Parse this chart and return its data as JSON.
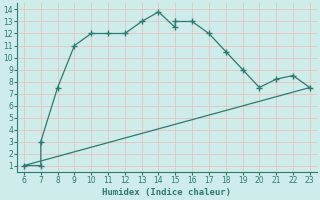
{
  "xlabel": "Humidex (Indice chaleur)",
  "curve_x": [
    6,
    7,
    7,
    8,
    9,
    10,
    11,
    12,
    13,
    14,
    15,
    15,
    16,
    17,
    18,
    19,
    20,
    21,
    22,
    23
  ],
  "curve_y": [
    1,
    1,
    3,
    7.5,
    11,
    12,
    12,
    12,
    13,
    13.8,
    12.5,
    13,
    13,
    12,
    10.5,
    9,
    7.5,
    8.2,
    8.5,
    7.5
  ],
  "line_x": [
    6,
    23
  ],
  "line_y": [
    1,
    7.5
  ],
  "color": "#2d7a6e",
  "bg_color": "#ceecea",
  "grid_h_color": "#e8c0c0",
  "grid_v_color": "#e8c0c0",
  "xlim": [
    5.6,
    23.4
  ],
  "ylim": [
    0.5,
    14.5
  ],
  "xticks": [
    6,
    7,
    8,
    9,
    10,
    11,
    12,
    13,
    14,
    15,
    16,
    17,
    18,
    19,
    20,
    21,
    22,
    23
  ],
  "yticks": [
    1,
    2,
    3,
    4,
    5,
    6,
    7,
    8,
    9,
    10,
    11,
    12,
    13,
    14
  ],
  "tick_fontsize": 5.5,
  "xlabel_fontsize": 6.5
}
